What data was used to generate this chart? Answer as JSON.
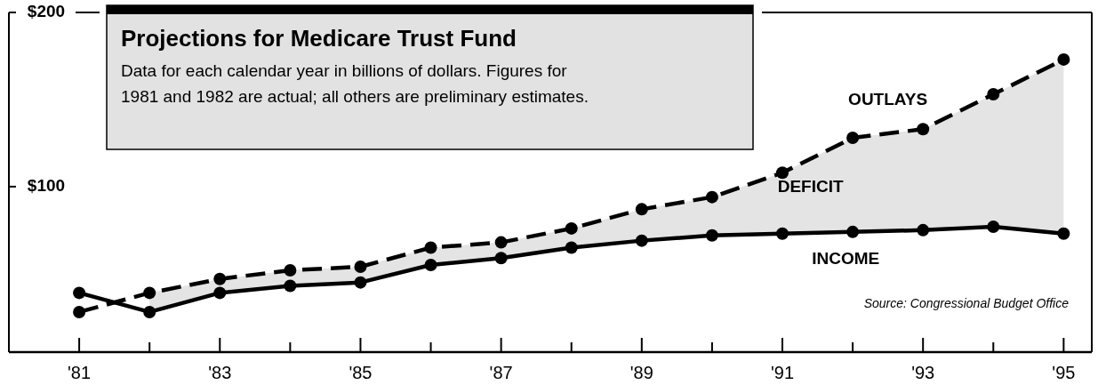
{
  "chart_data": {
    "type": "line",
    "title": "Projections for Medicare Trust Fund",
    "subtitle": "Data for each calendar year in billions of dollars. Figures for 1981 and 1982 are actual; all others are preliminary estimates.",
    "x": [
      1981,
      1982,
      1983,
      1984,
      1985,
      1986,
      1987,
      1988,
      1989,
      1990,
      1991,
      1992,
      1993,
      1994,
      1995
    ],
    "series": [
      {
        "name": "OUTLAYS",
        "color": "#000000",
        "line_style": "dashed",
        "values": [
          28,
          39,
          47,
          52,
          54,
          65,
          68,
          76,
          87,
          94,
          108,
          128,
          133,
          153,
          173
        ],
        "lower": [
          null,
          28,
          39,
          43,
          45,
          55,
          59,
          65,
          69,
          72,
          73,
          74,
          75,
          77,
          73
        ],
        "upper": [
          null,
          39,
          47,
          52,
          54,
          65,
          68,
          76,
          87,
          94,
          108,
          128,
          133,
          153,
          173
        ]
      },
      {
        "name": "INCOME",
        "color": "#000000",
        "line_style": "solid",
        "values": [
          39,
          28,
          39,
          43,
          45,
          55,
          59,
          65,
          69,
          72,
          73,
          74,
          75,
          77,
          73
        ]
      }
    ],
    "xlim": [
      1980,
      1995.4
    ],
    "xticks": [
      {
        "value": 1981,
        "label": "'81"
      },
      {
        "value": 1982,
        "label": null
      },
      {
        "value": 1983,
        "label": "'83"
      },
      {
        "value": 1984,
        "label": null
      },
      {
        "value": 1985,
        "label": "'85"
      },
      {
        "value": 1986,
        "label": null
      },
      {
        "value": 1987,
        "label": "'87"
      },
      {
        "value": 1988,
        "label": null
      },
      {
        "value": 1989,
        "label": "'89"
      },
      {
        "value": 1990,
        "label": null
      },
      {
        "value": 1991,
        "label": "'91"
      },
      {
        "value": 1992,
        "label": null
      },
      {
        "value": 1993,
        "label": "'93"
      },
      {
        "value": 1994,
        "label": null
      },
      {
        "value": 1995,
        "label": "'95"
      }
    ],
    "ylim": [
      5,
      200
    ],
    "yticks": [
      {
        "value": 100,
        "label": "$100"
      },
      {
        "value": 200,
        "label": "$200"
      }
    ],
    "annotations": [
      "DEFICIT",
      "Source: Congressional Budget Office"
    ],
    "marker": "circle",
    "grid": false
  }
}
